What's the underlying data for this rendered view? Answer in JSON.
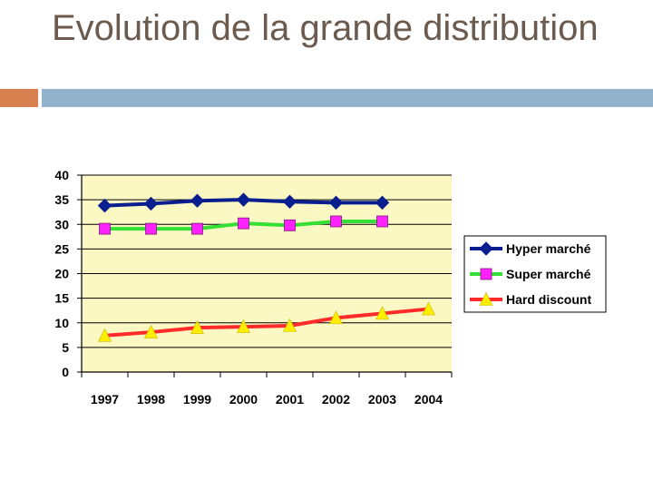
{
  "slide": {
    "title": "Evolution de la grande distribution",
    "accent_color": "#d8804f",
    "rule_color": "#93b3cc"
  },
  "chart_data": {
    "type": "line",
    "title": "",
    "xlabel": "",
    "ylabel": "",
    "categories": [
      "1997",
      "1998",
      "1999",
      "2000",
      "2001",
      "2002",
      "2003",
      "2004"
    ],
    "ylim": [
      0,
      40
    ],
    "yticks": [
      0,
      5,
      10,
      15,
      20,
      25,
      30,
      35,
      40
    ],
    "grid": true,
    "plot_background": "#fcf8c4",
    "legend_position": "right",
    "series": [
      {
        "name": "Hyper marché",
        "values": [
          33.8,
          34.2,
          34.8,
          35.0,
          34.6,
          34.4,
          34.4,
          null
        ],
        "color": "#0a1f8f",
        "marker": "diamond",
        "marker_color": "#0a1f8f"
      },
      {
        "name": "Super marché",
        "values": [
          29.1,
          29.1,
          29.1,
          30.2,
          29.8,
          30.6,
          30.6,
          null
        ],
        "color": "#33e033",
        "marker": "square",
        "marker_color": "#ff22ff"
      },
      {
        "name": "Hard discount",
        "values": [
          7.4,
          8.1,
          9.0,
          9.2,
          9.4,
          11.0,
          11.9,
          12.8
        ],
        "color": "#ff2a2a",
        "marker": "triangle",
        "marker_color": "#ffee00"
      }
    ]
  }
}
